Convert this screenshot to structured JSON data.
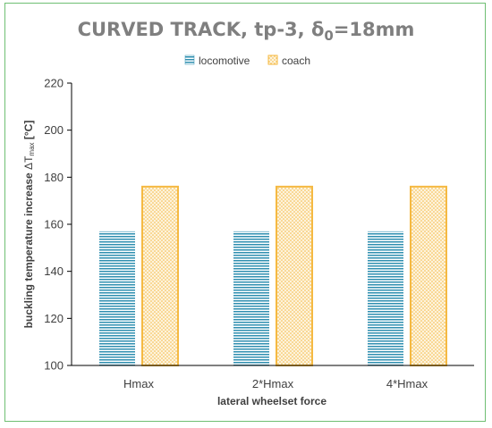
{
  "chart_data": {
    "type": "bar",
    "title": "CURVED TRACK, tp-3, δ",
    "title_subscript": "0",
    "title_suffix": "=18mm",
    "categories": [
      "Hmax",
      "2*Hmax",
      "4*Hmax"
    ],
    "series": [
      {
        "name": "locomotive",
        "values": [
          157,
          157,
          157
        ],
        "color": "#2f8fb0"
      },
      {
        "name": "coach",
        "values": [
          176,
          176,
          176
        ],
        "color": "#f5b942"
      }
    ],
    "xlabel": "lateral wheelset force",
    "ylabel": "buckling temperature increase ",
    "ylabel_symbol": "ΔT",
    "ylabel_subscript": "max",
    "ylabel_unit": " [°C]",
    "ylim": [
      100,
      220
    ],
    "yticks": [
      100,
      120,
      140,
      160,
      180,
      200,
      220
    ],
    "grid": false,
    "legend_position": "top-center",
    "border_color": "#6fbf73"
  }
}
